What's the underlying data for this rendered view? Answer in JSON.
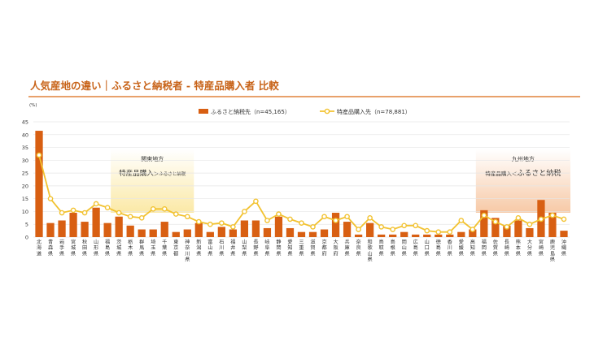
{
  "colors": {
    "title": "#C8641A",
    "rule": "#E0823A",
    "bar": "#D85F12",
    "line": "#F2C230",
    "marker_fill": "#FFFFFF",
    "grid": "#E6E6E6",
    "axis_text": "#333333",
    "kanto_box_top": "#FFFFFF",
    "kanto_box_bottom": "#FBE9A6",
    "kyushu_box_top": "#FFFFFF",
    "kyushu_box_bottom": "#F7C9A6"
  },
  "chart_data": {
    "type": "bar",
    "title": "人気産地の違い｜ふるさと納税者 - 特産品購入者 比較",
    "y_unit": "(%)",
    "ylim": [
      0,
      45
    ],
    "yticks": [
      0,
      5,
      10,
      15,
      20,
      25,
      30,
      35,
      40,
      45
    ],
    "grid": true,
    "legend_position": "top-center",
    "categories": [
      "北海道",
      "青森県",
      "岩手県",
      "宮城県",
      "秋田県",
      "山形県",
      "福島県",
      "茨城県",
      "栃木県",
      "群馬県",
      "埼玉県",
      "千葉県",
      "東京都",
      "神奈川県",
      "新潟県",
      "富山県",
      "石川県",
      "福井県",
      "山梨県",
      "長野県",
      "岐阜県",
      "静岡県",
      "愛知県",
      "三重県",
      "滋賀県",
      "京都府",
      "大阪府",
      "兵庫県",
      "奈良県",
      "和歌山県",
      "鳥取県",
      "島根県",
      "岡山県",
      "広島県",
      "山口県",
      "徳島県",
      "香川県",
      "愛媛県",
      "高知県",
      "福岡県",
      "佐賀県",
      "長崎県",
      "熊本県",
      "大分県",
      "宮崎県",
      "鹿児島県",
      "沖縄県"
    ],
    "series": [
      {
        "name": "ふるさと納税先（n=45,165）",
        "type": "bar",
        "values": [
          41.5,
          5.5,
          6.5,
          9.5,
          6,
          11.5,
          5.5,
          8,
          4.5,
          3,
          3,
          6,
          2,
          3,
          5.5,
          2,
          4,
          3,
          6.5,
          6.5,
          3.5,
          8,
          3.5,
          2,
          2,
          3,
          9.5,
          6,
          1,
          5.5,
          1,
          1,
          2,
          1,
          1,
          1,
          1,
          2,
          3,
          10.5,
          7.5,
          4.5,
          6.5,
          3.5,
          14.5,
          9.5,
          2.5
        ]
      },
      {
        "name": "特産品購入先（n=78,881）",
        "type": "line",
        "values": [
          32,
          15,
          9.5,
          10.5,
          9.5,
          13,
          11.5,
          9.5,
          8,
          7.5,
          11,
          11,
          9,
          8,
          6,
          5,
          5.5,
          4,
          10,
          14,
          6.5,
          9,
          7,
          5.5,
          4,
          8,
          6.5,
          8,
          3,
          7.5,
          4,
          3,
          4.5,
          4.5,
          2.5,
          2,
          2,
          6.5,
          3,
          8.5,
          6,
          4,
          7.5,
          5,
          7,
          8.5,
          7
        ]
      }
    ],
    "annotations": [
      {
        "region": "関東地方",
        "caption_left": "特産品購入",
        "caption_sign": "＞",
        "caption_right": "ふるさと納税",
        "from_category": "茨城県",
        "to_category": "神奈川県"
      },
      {
        "region": "九州地方",
        "caption_left": "特産品購入",
        "caption_sign": "＜",
        "caption_right": "ふるさと納税",
        "from_category": "福岡県",
        "to_category": "沖縄県"
      }
    ]
  }
}
